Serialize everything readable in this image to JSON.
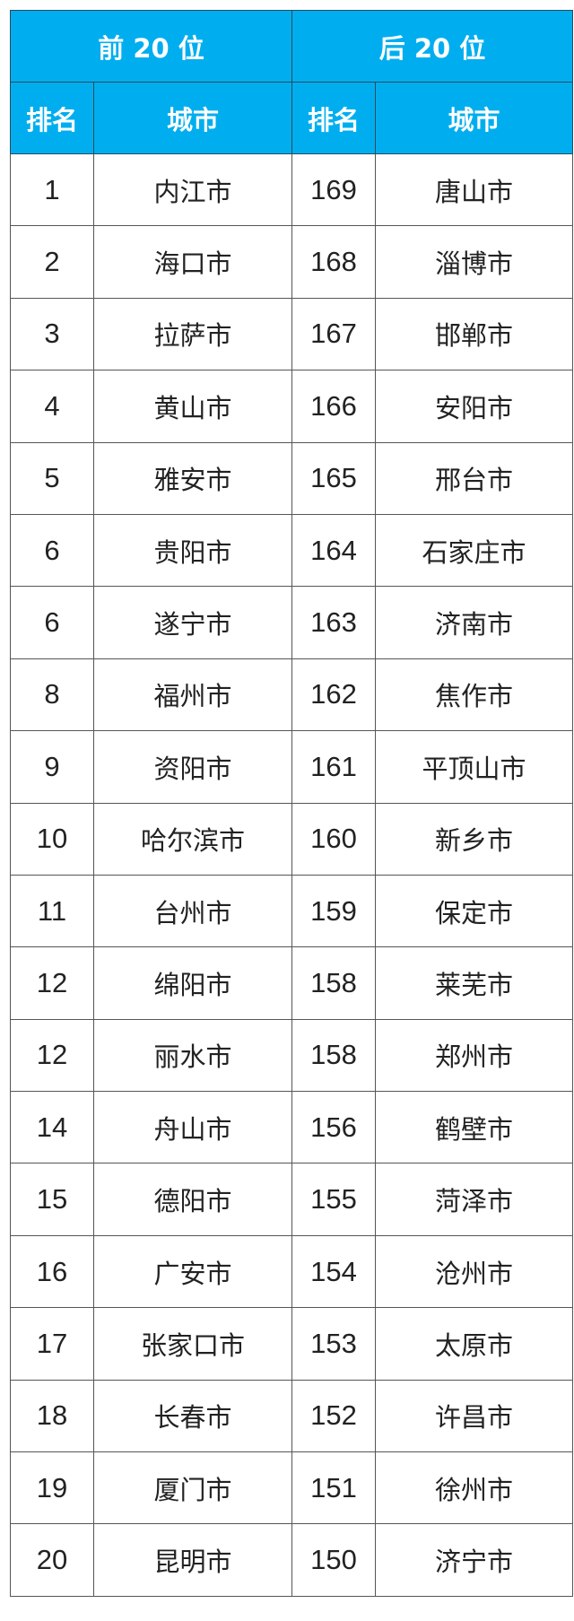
{
  "header": {
    "top_group": "前 20 位",
    "bottom_group": "后 20 位",
    "rank_label": "排名",
    "city_label": "城市"
  },
  "colors": {
    "header_bg": "#00aeef"
  },
  "rows": [
    {
      "top_rank": "1",
      "top_city": "内江市",
      "bottom_rank": "169",
      "bottom_city": "唐山市"
    },
    {
      "top_rank": "2",
      "top_city": "海口市",
      "bottom_rank": "168",
      "bottom_city": "淄博市"
    },
    {
      "top_rank": "3",
      "top_city": "拉萨市",
      "bottom_rank": "167",
      "bottom_city": "邯郸市"
    },
    {
      "top_rank": "4",
      "top_city": "黄山市",
      "bottom_rank": "166",
      "bottom_city": "安阳市"
    },
    {
      "top_rank": "5",
      "top_city": "雅安市",
      "bottom_rank": "165",
      "bottom_city": "邢台市"
    },
    {
      "top_rank": "6",
      "top_city": "贵阳市",
      "bottom_rank": "164",
      "bottom_city": "石家庄市"
    },
    {
      "top_rank": "6",
      "top_city": "遂宁市",
      "bottom_rank": "163",
      "bottom_city": "济南市"
    },
    {
      "top_rank": "8",
      "top_city": "福州市",
      "bottom_rank": "162",
      "bottom_city": "焦作市"
    },
    {
      "top_rank": "9",
      "top_city": "资阳市",
      "bottom_rank": "161",
      "bottom_city": "平顶山市"
    },
    {
      "top_rank": "10",
      "top_city": "哈尔滨市",
      "bottom_rank": "160",
      "bottom_city": "新乡市"
    },
    {
      "top_rank": "11",
      "top_city": "台州市",
      "bottom_rank": "159",
      "bottom_city": "保定市"
    },
    {
      "top_rank": "12",
      "top_city": "绵阳市",
      "bottom_rank": "158",
      "bottom_city": "莱芜市"
    },
    {
      "top_rank": "12",
      "top_city": "丽水市",
      "bottom_rank": "158",
      "bottom_city": "郑州市"
    },
    {
      "top_rank": "14",
      "top_city": "舟山市",
      "bottom_rank": "156",
      "bottom_city": "鹤壁市"
    },
    {
      "top_rank": "15",
      "top_city": "德阳市",
      "bottom_rank": "155",
      "bottom_city": "菏泽市"
    },
    {
      "top_rank": "16",
      "top_city": "广安市",
      "bottom_rank": "154",
      "bottom_city": "沧州市"
    },
    {
      "top_rank": "17",
      "top_city": "张家口市",
      "bottom_rank": "153",
      "bottom_city": "太原市"
    },
    {
      "top_rank": "18",
      "top_city": "长春市",
      "bottom_rank": "152",
      "bottom_city": "许昌市"
    },
    {
      "top_rank": "19",
      "top_city": "厦门市",
      "bottom_rank": "151",
      "bottom_city": "徐州市"
    },
    {
      "top_rank": "20",
      "top_city": "昆明市",
      "bottom_rank": "150",
      "bottom_city": "济宁市"
    }
  ]
}
